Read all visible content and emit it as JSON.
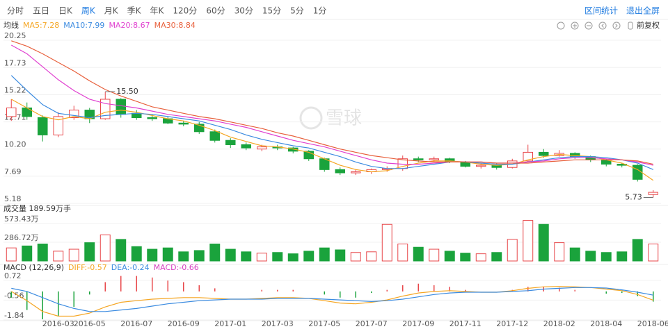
{
  "toolbar": {
    "tabs": [
      "分时",
      "五日",
      "日K",
      "周K",
      "月K",
      "季K",
      "年K",
      "120分",
      "60分",
      "30分",
      "15分",
      "5分",
      "1分"
    ],
    "active_tab": 3,
    "actions": [
      "区间统计",
      "退出全屏"
    ],
    "adjust": "前复权"
  },
  "watermark": "雪球",
  "chart_data": [
    {
      "type": "candlestick",
      "legend_title": "均线",
      "categories": [
        null,
        null,
        null,
        "2016-03",
        null,
        "2016-05",
        null,
        null,
        "2016-07",
        null,
        null,
        "2016-09",
        null,
        null,
        "2017-01",
        null,
        null,
        "2017-03",
        null,
        null,
        "2017-05",
        null,
        null,
        "2017-07",
        null,
        null,
        "2017-09",
        null,
        null,
        "2017-11",
        null,
        null,
        "2017-12",
        null,
        null,
        "2018-02",
        null,
        null,
        "2018-04",
        null,
        null,
        "2018-06"
      ],
      "open": [
        13.2,
        14.0,
        13.1,
        11.5,
        13.1,
        13.8,
        13.0,
        14.8,
        13.5,
        13.1,
        13.0,
        12.6,
        12.5,
        11.8,
        11.0,
        10.6,
        10.2,
        10.4,
        10.3,
        10.0,
        9.3,
        8.3,
        8.0,
        8.1,
        8.3,
        8.4,
        9.3,
        9.2,
        9.3,
        9.0,
        8.6,
        8.7,
        8.5,
        9.1,
        9.9,
        9.6,
        9.8,
        9.5,
        9.2,
        8.8,
        8.7,
        6.0
      ],
      "high": [
        14.8,
        14.5,
        13.3,
        13.6,
        14.2,
        14.0,
        15.5,
        14.9,
        13.8,
        13.4,
        13.2,
        12.8,
        12.7,
        12.0,
        11.2,
        10.8,
        10.6,
        10.6,
        10.4,
        10.1,
        9.4,
        8.5,
        8.3,
        8.4,
        8.6,
        9.6,
        9.5,
        9.5,
        9.4,
        9.1,
        8.9,
        8.9,
        9.3,
        10.6,
        10.2,
        10.1,
        9.9,
        9.6,
        9.3,
        8.9,
        8.8,
        6.4
      ],
      "low": [
        12.8,
        12.9,
        10.9,
        11.3,
        12.9,
        12.6,
        12.9,
        13.1,
        12.9,
        12.8,
        12.5,
        12.3,
        11.6,
        10.8,
        10.3,
        10.1,
        10.0,
        10.1,
        9.8,
        9.1,
        8.1,
        7.8,
        7.8,
        7.9,
        8.1,
        8.2,
        9.0,
        9.0,
        8.9,
        8.5,
        8.4,
        8.3,
        8.4,
        9.0,
        9.4,
        9.5,
        9.3,
        9.0,
        8.6,
        8.5,
        7.2,
        5.73
      ],
      "close": [
        14.0,
        13.2,
        11.5,
        13.2,
        13.8,
        13.0,
        14.8,
        13.4,
        13.1,
        13.0,
        12.6,
        12.5,
        11.8,
        11.0,
        10.6,
        10.3,
        10.4,
        10.3,
        10.0,
        9.3,
        8.3,
        8.0,
        8.1,
        8.3,
        8.4,
        9.3,
        9.2,
        9.3,
        9.0,
        8.6,
        8.7,
        8.5,
        9.1,
        9.9,
        9.6,
        9.8,
        9.5,
        9.2,
        8.8,
        8.7,
        7.4,
        6.2
      ],
      "up_color": "#e8474a",
      "down_color": "#1aa33c",
      "series": [
        {
          "name": "MA5:7.28",
          "color": "#f5a623",
          "values": [
            14.8,
            14.0,
            13.2,
            12.9,
            13.2,
            13.0,
            13.6,
            13.8,
            13.6,
            13.3,
            13.0,
            12.8,
            12.4,
            11.9,
            11.3,
            10.9,
            10.5,
            10.4,
            10.2,
            9.9,
            9.3,
            8.7,
            8.3,
            8.1,
            8.2,
            8.6,
            8.9,
            9.1,
            9.1,
            9.0,
            8.8,
            8.7,
            8.8,
            9.2,
            9.5,
            9.7,
            9.6,
            9.5,
            9.2,
            8.9,
            8.3,
            7.3
          ]
        },
        {
          "name": "MA10:7.99",
          "color": "#3b8be0",
          "values": [
            17.0,
            15.6,
            14.3,
            13.5,
            13.3,
            13.1,
            13.3,
            13.4,
            13.5,
            13.4,
            13.2,
            13.0,
            12.8,
            12.4,
            12.0,
            11.5,
            11.1,
            10.8,
            10.5,
            10.3,
            9.9,
            9.5,
            9.0,
            8.6,
            8.4,
            8.4,
            8.6,
            8.8,
            9.0,
            9.0,
            8.9,
            8.8,
            8.8,
            9.0,
            9.2,
            9.4,
            9.5,
            9.5,
            9.4,
            9.2,
            8.9,
            8.3
          ]
        },
        {
          "name": "MA20:8.67",
          "color": "#e040d0",
          "values": [
            19.8,
            19.0,
            17.8,
            16.6,
            15.6,
            14.8,
            14.4,
            14.2,
            14.0,
            13.7,
            13.4,
            13.2,
            13.0,
            12.8,
            12.5,
            12.2,
            11.8,
            11.4,
            11.0,
            10.7,
            10.4,
            10.0,
            9.6,
            9.2,
            8.9,
            8.8,
            8.8,
            8.9,
            9.0,
            9.0,
            9.0,
            8.9,
            8.9,
            9.0,
            9.1,
            9.3,
            9.4,
            9.4,
            9.3,
            9.2,
            9.0,
            8.7
          ]
        },
        {
          "name": "MA30:8.84",
          "color": "#e8603c",
          "values": [
            20.2,
            19.7,
            19.0,
            18.2,
            17.4,
            16.5,
            15.7,
            15.1,
            14.6,
            14.1,
            13.8,
            13.5,
            13.2,
            13.0,
            12.7,
            12.4,
            12.1,
            11.7,
            11.4,
            11.0,
            10.6,
            10.2,
            9.9,
            9.6,
            9.4,
            9.2,
            9.1,
            9.0,
            9.0,
            9.0,
            9.0,
            8.9,
            8.9,
            8.9,
            9.0,
            9.1,
            9.2,
            9.2,
            9.2,
            9.2,
            9.1,
            8.8
          ]
        }
      ],
      "annotations": [
        {
          "value": 15.5,
          "label": "15.50"
        },
        5.73
      ],
      "ylim": [
        5.18,
        20.25
      ],
      "yticks": [
        5.18,
        7.69,
        {
          "value": 10.2,
          "label": "10.20"
        },
        12.71,
        15.22,
        17.73,
        20.25
      ],
      "grid": true
    },
    {
      "type": "bar",
      "title": "成交量 189.59万手",
      "values": [
        200,
        230,
        260,
        150,
        180,
        280,
        400,
        330,
        220,
        180,
        200,
        140,
        160,
        260,
        180,
        140,
        120,
        130,
        110,
        150,
        200,
        170,
        130,
        140,
        560,
        260,
        210,
        180,
        150,
        120,
        110,
        130,
        330,
        620,
        560,
        280,
        200,
        150,
        130,
        140,
        330,
        260
      ],
      "ylim": [
        0,
        722
      ],
      "yticks": [
        {
          "value": 286.72,
          "label": "286.72万"
        },
        {
          "value": 573.43,
          "label": "573.43万"
        }
      ],
      "grid": true
    },
    {
      "type": "macd",
      "title": "MACD (12,26,9)",
      "series": [
        {
          "name": "DIFF:-0.57",
          "color": "#f5a623",
          "values": [
            0.0,
            -0.6,
            -1.3,
            -1.6,
            -1.6,
            -1.4,
            -1.0,
            -0.7,
            -0.6,
            -0.5,
            -0.45,
            -0.4,
            -0.4,
            -0.45,
            -0.5,
            -0.5,
            -0.45,
            -0.4,
            -0.4,
            -0.45,
            -0.6,
            -0.75,
            -0.8,
            -0.7,
            -0.55,
            -0.3,
            -0.1,
            0.0,
            0.05,
            0.0,
            -0.05,
            -0.05,
            0.05,
            0.2,
            0.3,
            0.32,
            0.3,
            0.25,
            0.15,
            0.05,
            -0.2,
            -0.57
          ]
        },
        {
          "name": "DEA:-0.24",
          "color": "#3b8be0",
          "values": [
            0.2,
            0.0,
            -0.4,
            -0.8,
            -1.1,
            -1.3,
            -1.3,
            -1.2,
            -1.1,
            -0.95,
            -0.8,
            -0.7,
            -0.6,
            -0.55,
            -0.5,
            -0.5,
            -0.5,
            -0.45,
            -0.45,
            -0.45,
            -0.5,
            -0.55,
            -0.6,
            -0.65,
            -0.6,
            -0.5,
            -0.35,
            -0.2,
            -0.1,
            -0.05,
            -0.05,
            -0.05,
            0.0,
            0.05,
            0.15,
            0.2,
            0.25,
            0.25,
            0.22,
            0.1,
            -0.05,
            -0.24
          ]
        },
        {
          "name": "MACD:-0.66",
          "color": "#d63fc1",
          "type": "bar",
          "values": [
            -0.4,
            -1.2,
            -1.8,
            -1.6,
            -1.0,
            -0.2,
            0.6,
            1.0,
            1.0,
            0.9,
            0.7,
            0.6,
            0.4,
            0.2,
            0.0,
            0.0,
            0.1,
            0.1,
            0.1,
            0.0,
            -0.2,
            -0.4,
            -0.4,
            -0.1,
            0.1,
            0.4,
            0.5,
            0.4,
            0.3,
            0.1,
            0.0,
            0.0,
            0.1,
            0.3,
            0.3,
            0.24,
            0.1,
            0.0,
            -0.14,
            -0.1,
            -0.3,
            -0.66
          ]
        }
      ],
      "ylim": [
        -1.89,
        1.25
      ],
      "yticks": [
        -1.84,
        -0.56,
        0.72
      ],
      "grid": true
    }
  ]
}
